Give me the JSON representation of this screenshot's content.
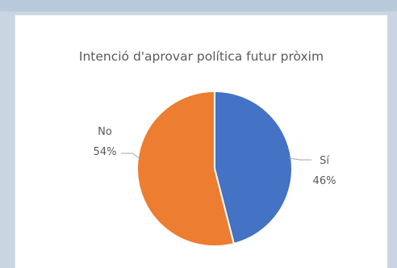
{
  "chart_data": {
    "type": "pie",
    "title": "Intenció d'aprovar política futur pròxim",
    "slices": [
      {
        "label": "Sí",
        "value": 46,
        "display": "46%",
        "color": "#4472c4"
      },
      {
        "label": "No",
        "value": 54,
        "display": "54%",
        "color": "#ed7d31"
      }
    ],
    "start_angle_deg": 0,
    "direction": "clockwise",
    "legend": "none",
    "data_labels": "outside-with-leader-lines"
  }
}
